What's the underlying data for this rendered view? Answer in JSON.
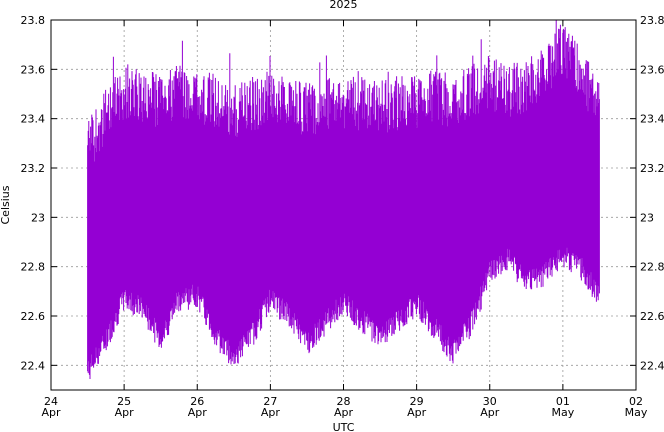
{
  "chart_data": {
    "type": "line",
    "title": "2025",
    "xlabel": "UTC",
    "ylabel": "Celsius",
    "ylim": [
      22.3,
      23.8
    ],
    "y_ticks": [
      22.4,
      22.6,
      22.8,
      23,
      23.2,
      23.4,
      23.6,
      23.8
    ],
    "y_tick_labels": [
      "22.4",
      "22.6",
      "22.8",
      "23",
      "23.2",
      "23.4",
      "23.6",
      "23.8"
    ],
    "xlim": [
      "2025-04-24",
      "2025-05-02"
    ],
    "x_ticks": [
      {
        "date": "2025-04-24",
        "day": "24",
        "month": "Apr"
      },
      {
        "date": "2025-04-25",
        "day": "25",
        "month": "Apr"
      },
      {
        "date": "2025-04-26",
        "day": "26",
        "month": "Apr"
      },
      {
        "date": "2025-04-27",
        "day": "27",
        "month": "Apr"
      },
      {
        "date": "2025-04-28",
        "day": "28",
        "month": "Apr"
      },
      {
        "date": "2025-04-29",
        "day": "29",
        "month": "Apr"
      },
      {
        "date": "2025-04-30",
        "day": "30",
        "month": "Apr"
      },
      {
        "date": "2025-05-01",
        "day": "01",
        "month": "May"
      },
      {
        "date": "2025-05-02",
        "day": "02",
        "month": "May"
      }
    ],
    "grid": true,
    "series_color": "#9400d3",
    "series": [
      {
        "x": [
          "2025-04-24 12:00",
          "2025-04-24 18:00",
          "2025-04-25 00:00",
          "2025-04-25 06:00",
          "2025-04-25 12:00",
          "2025-04-25 18:00",
          "2025-04-26 00:00",
          "2025-04-26 06:00",
          "2025-04-26 12:00",
          "2025-04-26 18:00",
          "2025-04-27 00:00",
          "2025-04-27 06:00",
          "2025-04-27 12:00",
          "2025-04-27 18:00",
          "2025-04-28 00:00",
          "2025-04-28 06:00",
          "2025-04-28 12:00",
          "2025-04-28 18:00",
          "2025-04-29 00:00",
          "2025-04-29 06:00",
          "2025-04-29 12:00",
          "2025-04-29 18:00",
          "2025-04-30 00:00",
          "2025-04-30 06:00",
          "2025-04-30 12:00",
          "2025-04-30 18:00",
          "2025-05-01 00:00",
          "2025-05-01 06:00",
          "2025-05-01 12:00"
        ],
        "y_min": [
          22.32,
          22.45,
          22.62,
          22.58,
          22.45,
          22.62,
          22.63,
          22.47,
          22.38,
          22.47,
          22.62,
          22.55,
          22.44,
          22.52,
          22.6,
          22.53,
          22.47,
          22.53,
          22.6,
          22.5,
          22.4,
          22.52,
          22.72,
          22.78,
          22.68,
          22.72,
          22.8,
          22.74,
          22.63
        ],
        "y_max": [
          23.4,
          23.52,
          23.62,
          23.6,
          23.58,
          23.62,
          23.6,
          23.58,
          23.54,
          23.56,
          23.6,
          23.56,
          23.55,
          23.56,
          23.58,
          23.57,
          23.56,
          23.57,
          23.58,
          23.6,
          23.58,
          23.62,
          23.66,
          23.62,
          23.64,
          23.7,
          23.8,
          23.68,
          23.58
        ]
      }
    ]
  }
}
